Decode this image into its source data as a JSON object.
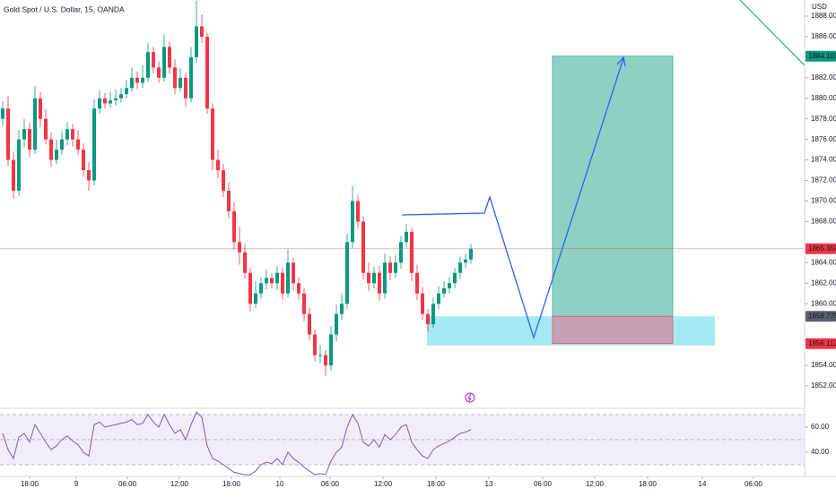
{
  "chart_data": {
    "type": "candlestick",
    "title": "Gold Spot / U.S. Dollar, 15, OANDA",
    "currency": "USD",
    "up_color": "#089981",
    "down_color": "#f23645",
    "open": [
      1878,
      1879,
      1874,
      1871,
      1876,
      1877,
      1875,
      1880,
      1878,
      1876,
      1874,
      1875,
      1876,
      1877,
      1876,
      1875,
      1873,
      1872,
      1879,
      1880,
      1879.5,
      1879.8,
      1880,
      1880.4,
      1881,
      1882,
      1881.5,
      1882,
      1884.5,
      1883,
      1882,
      1885,
      1883,
      1881,
      1882,
      1880,
      1884,
      1887,
      1886,
      1879,
      1874,
      1873,
      1871,
      1869,
      1866,
      1865,
      1863,
      1860,
      1861,
      1862,
      1862.5,
      1862,
      1863,
      1861,
      1864,
      1862,
      1861,
      1859,
      1857,
      1855,
      1855,
      1854,
      1857,
      1859,
      1860,
      1866,
      1870,
      1868,
      1863,
      1862,
      1863,
      1861,
      1864,
      1863,
      1864,
      1866,
      1867,
      1863,
      1861,
      1859,
      1858,
      1860,
      1861,
      1861.5,
      1862,
      1863,
      1864,
      1864.3
    ],
    "high": [
      1879.7,
      1880.2,
      1874.8,
      1876.9,
      1878,
      1877.6,
      1881.2,
      1880.6,
      1878.9,
      1876.7,
      1876,
      1876.8,
      1877.7,
      1877.5,
      1876.9,
      1875.6,
      1873.8,
      1879.9,
      1880.8,
      1880.5,
      1880.6,
      1880.9,
      1881,
      1881.8,
      1883,
      1882.6,
      1883.2,
      1885.4,
      1885,
      1883.6,
      1886.2,
      1885.5,
      1883.8,
      1882.9,
      1882.5,
      1885,
      1889.5,
      1888.2,
      1886.4,
      1879.5,
      1875,
      1873.6,
      1871.8,
      1869.9,
      1867.5,
      1865.8,
      1863.5,
      1862.2,
      1862.6,
      1863.3,
      1863,
      1863.7,
      1863.5,
      1865.3,
      1864.5,
      1862.6,
      1861.5,
      1859.6,
      1857.5,
      1856,
      1855.5,
      1857.8,
      1859.9,
      1861,
      1866.8,
      1871.5,
      1870.6,
      1868.5,
      1864,
      1863.6,
      1863.7,
      1864.9,
      1864.6,
      1864.7,
      1866.6,
      1867.8,
      1867.4,
      1863.8,
      1861.6,
      1859.5,
      1860.6,
      1861.7,
      1862.2,
      1862.6,
      1863.5,
      1864.6,
      1864.9,
      1865.8
    ],
    "low": [
      1877.3,
      1873.4,
      1870.2,
      1870.5,
      1875.2,
      1874.3,
      1874.6,
      1877.2,
      1875.5,
      1873.3,
      1873.6,
      1874.5,
      1875.4,
      1875.3,
      1874.5,
      1872.4,
      1871,
      1871.5,
      1878.5,
      1879,
      1879.1,
      1879.3,
      1879.6,
      1880,
      1880.6,
      1880.9,
      1881,
      1881.6,
      1882.4,
      1881.5,
      1881.6,
      1882.4,
      1880.4,
      1880.6,
      1879.2,
      1879.6,
      1883.5,
      1885.4,
      1878.5,
      1873,
      1872.2,
      1870.4,
      1868.3,
      1865.2,
      1863.8,
      1862.4,
      1859.3,
      1859.6,
      1860.5,
      1861.4,
      1861.5,
      1861.3,
      1860.4,
      1860.6,
      1861.3,
      1860.4,
      1858.3,
      1856.4,
      1854.4,
      1854.2,
      1853,
      1853.5,
      1856.3,
      1858.4,
      1859.5,
      1865.4,
      1867.3,
      1862.4,
      1861.2,
      1861.5,
      1860.3,
      1860.5,
      1862.3,
      1862.5,
      1863.4,
      1865.5,
      1862.2,
      1860.4,
      1858.4,
      1857.3,
      1857.6,
      1859.5,
      1860.6,
      1861,
      1861.5,
      1862.4,
      1863.5,
      1863.9
    ],
    "close": [
      1879,
      1874,
      1871,
      1876,
      1877,
      1875,
      1880,
      1878,
      1876,
      1874,
      1875,
      1876,
      1877,
      1876,
      1875,
      1873,
      1872,
      1879,
      1880,
      1879.5,
      1879.8,
      1880,
      1880.4,
      1881,
      1882,
      1881.5,
      1882,
      1884.5,
      1883,
      1882,
      1885,
      1883,
      1881,
      1882,
      1880,
      1884,
      1887,
      1886,
      1879,
      1874,
      1873,
      1871,
      1869,
      1866,
      1865,
      1863,
      1860,
      1861,
      1862,
      1862.5,
      1862,
      1863,
      1861,
      1864,
      1862,
      1861,
      1859,
      1857,
      1855,
      1855,
      1854,
      1857,
      1859,
      1860,
      1866,
      1870,
      1868,
      1863,
      1862,
      1863,
      1861,
      1864,
      1863,
      1864,
      1866,
      1867,
      1863,
      1861,
      1859,
      1858,
      1860,
      1861,
      1861.5,
      1862,
      1863,
      1864,
      1864.3,
      1865.35
    ],
    "xlim": [
      -0.5,
      149
    ],
    "xticks": [
      {
        "value": 5,
        "label": "18:00"
      },
      {
        "value": 13.67,
        "label": "9"
      },
      {
        "value": 23.17,
        "label": "06:00"
      },
      {
        "value": 32.83,
        "label": "12:00"
      },
      {
        "value": 42.5,
        "label": "18:00"
      },
      {
        "value": 51.5,
        "label": "10"
      },
      {
        "value": 60.83,
        "label": "06:00"
      },
      {
        "value": 70.67,
        "label": "12:00"
      },
      {
        "value": 80.5,
        "label": "18:00"
      },
      {
        "value": 90.33,
        "label": "13"
      },
      {
        "value": 100.33,
        "label": "06:00"
      },
      {
        "value": 110,
        "label": "12:00"
      },
      {
        "value": 119.83,
        "label": "18:00"
      },
      {
        "value": 130,
        "label": "14"
      },
      {
        "value": 139.5,
        "label": "06:00"
      }
    ],
    "ylim": [
      1849.9,
      1889.57
    ],
    "yticks": [
      {
        "value": 1888,
        "label": "1888.000"
      },
      {
        "value": 1886,
        "label": "1886.000"
      },
      {
        "value": 1882,
        "label": "1882.000"
      },
      {
        "value": 1880,
        "label": "1880.000"
      },
      {
        "value": 1878,
        "label": "1878.000"
      },
      {
        "value": 1876,
        "label": "1876.000"
      },
      {
        "value": 1874,
        "label": "1874.000"
      },
      {
        "value": 1872,
        "label": "1872.000"
      },
      {
        "value": 1870,
        "label": "1870.000"
      },
      {
        "value": 1868,
        "label": "1868.000"
      },
      {
        "value": 1864,
        "label": "1864.000"
      },
      {
        "value": 1862,
        "label": "1862.000"
      },
      {
        "value": 1860,
        "label": "1860.000"
      },
      {
        "value": 1854,
        "label": "1854.000"
      },
      {
        "value": 1852,
        "label": "1852.000"
      }
    ],
    "price_labels": [
      {
        "value": 1884.101,
        "label": "1884.101",
        "color": "#089981"
      },
      {
        "value": 1865.35,
        "label": "1865.350",
        "color": "#f23645"
      },
      {
        "value": 1858.775,
        "label": "1858.775",
        "color": "#5d606b"
      },
      {
        "value": 1856.112,
        "label": "1856.112",
        "color": "#f23645"
      }
    ],
    "rsi": {
      "color": "#7e57c2",
      "values": [
        55,
        42,
        35,
        52,
        55,
        48,
        62,
        55,
        48,
        42,
        45,
        50,
        53,
        49,
        46,
        40,
        37,
        62,
        64,
        60,
        61,
        62,
        63,
        64,
        66,
        62,
        63,
        70,
        64,
        60,
        70,
        62,
        55,
        58,
        50,
        62,
        72,
        68,
        45,
        35,
        33,
        30,
        27,
        24,
        23,
        22,
        22,
        25,
        30,
        32,
        31,
        35,
        30,
        40,
        35,
        32,
        28,
        25,
        22,
        23,
        22,
        33,
        40,
        44,
        60,
        70,
        63,
        48,
        45,
        50,
        44,
        54,
        50,
        54,
        60,
        62,
        48,
        42,
        37,
        35,
        42,
        45,
        47,
        49,
        52,
        55,
        56,
        58
      ],
      "ylim": [
        20.7,
        72.1
      ],
      "yticks": [
        {
          "value": 60,
          "label": "60.00"
        },
        {
          "value": 40,
          "label": "40.00"
        }
      ]
    }
  }
}
